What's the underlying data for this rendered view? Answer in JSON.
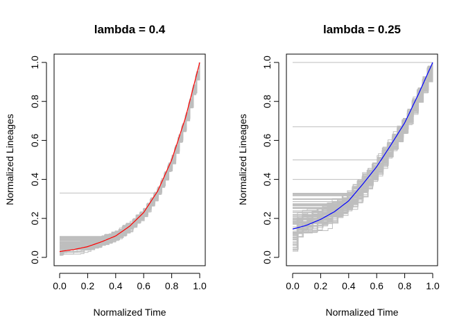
{
  "chart_data": [
    {
      "type": "line",
      "title": "lambda = 0.4",
      "xlabel": "Normalized Time",
      "ylabel": "Normalized Lineages",
      "xlim": [
        0,
        1
      ],
      "ylim": [
        0,
        1
      ],
      "xticks": [
        "0.0",
        "0.2",
        "0.4",
        "0.6",
        "0.8",
        "1.0"
      ],
      "yticks": [
        "0.0",
        "0.2",
        "0.4",
        "0.6",
        "0.8",
        "1.0"
      ],
      "grid": false,
      "legend": "none",
      "series": [
        {
          "color": "#ff0000",
          "style": "mean",
          "x": [
            0.0,
            0.1,
            0.2,
            0.3,
            0.4,
            0.5,
            0.6,
            0.7,
            0.8,
            0.9,
            1.0
          ],
          "y": [
            0.03,
            0.04,
            0.055,
            0.08,
            0.11,
            0.16,
            0.23,
            0.34,
            0.5,
            0.72,
            1.0
          ]
        },
        {
          "color": "#bebebe",
          "style": "simulations",
          "count": 100,
          "shape": "exponential-step",
          "y_start_range": [
            0.01,
            0.11
          ],
          "outlier_start": 0.33
        }
      ]
    },
    {
      "type": "line",
      "title": "lambda = 0.25",
      "xlabel": "Normalized Time",
      "ylabel": "Normalized Lineages",
      "xlim": [
        0,
        1
      ],
      "ylim": [
        0,
        1
      ],
      "xticks": [
        "0.0",
        "0.2",
        "0.4",
        "0.6",
        "0.8",
        "1.0"
      ],
      "yticks": [
        "0.0",
        "0.2",
        "0.4",
        "0.6",
        "0.8",
        "1.0"
      ],
      "grid": false,
      "legend": "none",
      "series": [
        {
          "color": "#0000ff",
          "style": "mean",
          "x": [
            0.0,
            0.1,
            0.2,
            0.3,
            0.4,
            0.5,
            0.6,
            0.7,
            0.8,
            0.9,
            1.0
          ],
          "y": [
            0.145,
            0.165,
            0.195,
            0.235,
            0.29,
            0.375,
            0.465,
            0.575,
            0.69,
            0.84,
            1.0
          ]
        },
        {
          "color": "#bebebe",
          "style": "simulations",
          "count": 100,
          "shape": "noisy-step",
          "y_start_range": [
            0.03,
            0.33
          ],
          "outlier_starts": [
            1.0,
            0.67,
            0.5,
            0.4
          ]
        }
      ]
    }
  ]
}
